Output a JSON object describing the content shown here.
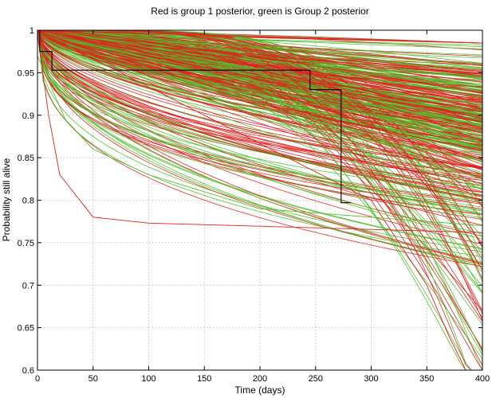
{
  "chart_data": {
    "type": "line",
    "title": "Red is group 1 posterior, green is Group 2 posterior",
    "xlabel": "Time (days)",
    "ylabel": "Probability still alive",
    "xlim": [
      0,
      400
    ],
    "ylim": [
      0.6,
      1.0
    ],
    "grid": true,
    "x_ticks": [
      0,
      50,
      100,
      150,
      200,
      250,
      300,
      350,
      400
    ],
    "y_ticks": [
      0.6,
      0.65,
      0.7,
      0.75,
      0.8,
      0.85,
      0.9,
      0.95,
      1
    ],
    "colors": {
      "group1": "#e0211f",
      "group2": "#4fbf2a",
      "empirical": "#000000"
    },
    "kaplan_meier": {
      "x": [
        0,
        2,
        2,
        13,
        13,
        245,
        245,
        273,
        273,
        282
      ],
      "y": [
        1.0,
        1.0,
        0.975,
        0.975,
        0.953,
        0.953,
        0.93,
        0.93,
        0.797,
        0.797
      ]
    },
    "series": [
      {
        "group": 1,
        "count": 200,
        "values_at_x400": {
          "min": 0.6,
          "median": 0.89,
          "max": 0.985
        },
        "examples": [
          {
            "x": [
              0,
              10,
              20,
              50,
              100,
              400
            ],
            "y": [
              0.995,
              0.9,
              0.83,
              0.78,
              0.773,
              0.762
            ]
          },
          {
            "x": [
              0,
              300,
              350,
              370,
              385
            ],
            "y": [
              1.0,
              0.8,
              0.7,
              0.64,
              0.6
            ]
          }
        ]
      },
      {
        "group": 2,
        "count": 200,
        "values_at_x400": {
          "min": 0.63,
          "median": 0.89,
          "max": 0.97
        },
        "examples": [
          {
            "x": [
              0,
              25,
              50,
              100,
              200,
              400
            ],
            "y": [
              0.97,
              0.895,
              0.86,
              0.83,
              0.79,
              0.77
            ]
          }
        ]
      }
    ]
  }
}
